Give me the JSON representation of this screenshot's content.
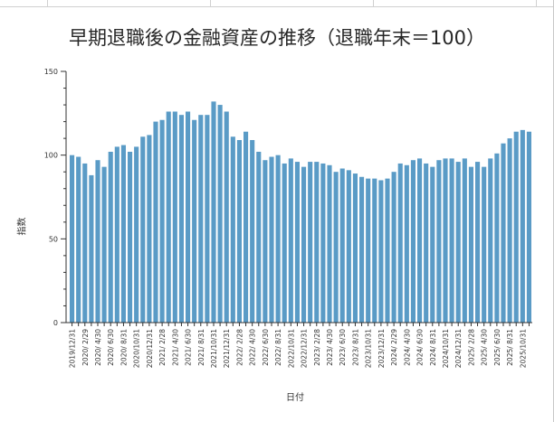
{
  "chart_data": {
    "type": "bar",
    "title": "早期退職後の金融資産の推移（退職年末＝100）",
    "xlabel": "日付",
    "ylabel": "指数",
    "ylim": [
      0,
      150
    ],
    "yticks": [
      0,
      50,
      100,
      150
    ],
    "grid": false,
    "bar_color": "#5a9bc6",
    "categories": [
      "2019/12/31",
      "2020/1/31",
      "2020/2/29",
      "2020/3/31",
      "2020/4/30",
      "2020/5/31",
      "2020/6/30",
      "2020/7/31",
      "2020/8/31",
      "2020/9/30",
      "2020/10/31",
      "2020/11/30",
      "2020/12/31",
      "2021/1/31",
      "2021/2/28",
      "2021/3/31",
      "2021/4/30",
      "2021/5/31",
      "2021/6/30",
      "2021/7/31",
      "2021/8/31",
      "2021/9/30",
      "2021/10/31",
      "2021/11/30",
      "2021/12/31",
      "2022/1/31",
      "2022/2/28",
      "2022/3/31",
      "2022/4/30",
      "2022/5/31",
      "2022/6/30",
      "2022/7/31",
      "2022/8/31",
      "2022/9/30",
      "2022/10/31",
      "2022/11/30",
      "2022/12/31",
      "2023/1/31",
      "2023/2/28",
      "2023/3/31",
      "2023/4/30",
      "2023/5/31",
      "2023/6/30",
      "2023/7/31",
      "2023/8/31",
      "2023/9/30",
      "2023/10/31",
      "2023/11/30",
      "2023/12/31",
      "2024/1/31",
      "2024/2/29",
      "2024/3/31",
      "2024/4/30",
      "2024/5/31",
      "2024/6/30",
      "2024/7/31",
      "2024/8/31",
      "2024/9/30",
      "2024/10/31",
      "2024/11/30",
      "2024/12/31",
      "2025/1/31",
      "2025/2/28",
      "2025/3/31",
      "2025/4/30",
      "2025/5/31",
      "2025/6/30",
      "2025/7/31",
      "2025/8/31",
      "2025/9/30",
      "2025/10/31",
      "2025/11/30"
    ],
    "tick_labels": [
      "2019/12/31",
      "2020/ 2/29",
      "2020/ 4/30",
      "2020/ 6/30",
      "2020/ 8/31",
      "2020/10/31",
      "2020/12/31",
      "2021/ 2/28",
      "2021/ 4/30",
      "2021/ 6/30",
      "2021/ 8/31",
      "2021/10/31",
      "2021/12/31",
      "2022/ 2/28",
      "2022/ 4/30",
      "2022/ 6/30",
      "2022/ 8/31",
      "2022/10/31",
      "2022/12/31",
      "2023/ 2/28",
      "2023/ 4/30",
      "2023/ 6/30",
      "2023/ 8/31",
      "2023/10/31",
      "2023/12/31",
      "2024/ 2/29",
      "2024/ 4/30",
      "2024/ 6/30",
      "2024/ 8/31",
      "2024/10/31",
      "2024/12/31",
      "2025/ 2/28",
      "2025/ 4/30",
      "2025/ 6/30",
      "2025/ 8/31",
      "2025/10/31"
    ],
    "values": [
      100,
      99,
      95,
      88,
      97,
      93,
      102,
      105,
      106,
      102,
      105,
      111,
      112,
      120,
      121,
      126,
      126,
      124,
      126,
      121,
      124,
      124,
      132,
      130,
      126,
      111,
      109,
      114,
      109,
      102,
      97,
      99,
      100,
      95,
      98,
      96,
      93,
      96,
      96,
      95,
      94,
      90,
      92,
      91,
      89,
      87,
      86,
      86,
      85,
      86,
      90,
      95,
      94,
      97,
      98,
      95,
      93,
      97,
      98,
      98,
      96,
      98,
      93,
      96,
      93,
      98,
      101,
      107,
      110,
      114,
      115,
      114
    ]
  }
}
